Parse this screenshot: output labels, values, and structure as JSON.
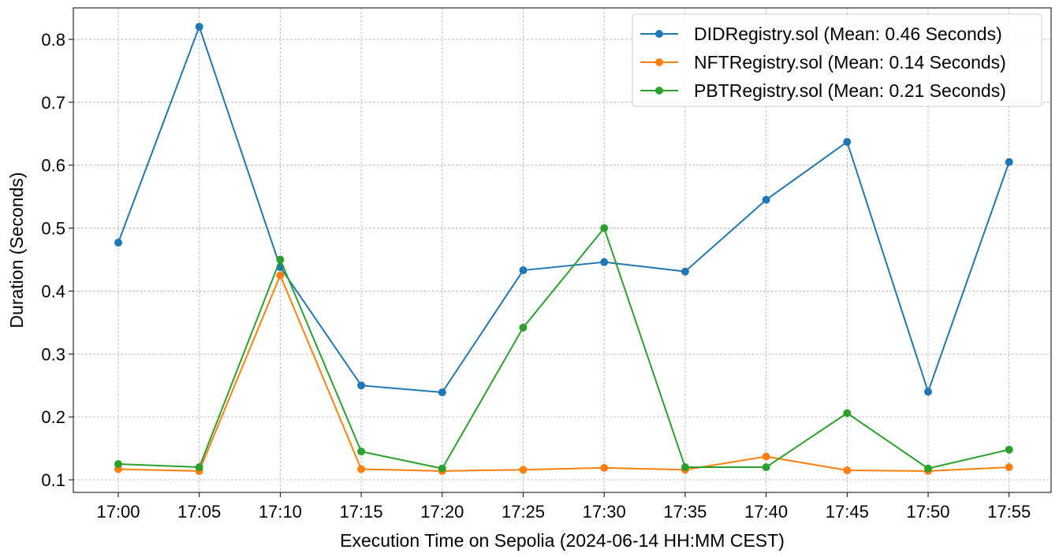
{
  "chart_data": {
    "type": "line",
    "xlabel": "Execution Time on Sepolia (2024-06-14 HH:MM CEST)",
    "ylabel": "Duration (Seconds)",
    "categories": [
      "17:00",
      "17:05",
      "17:10",
      "17:15",
      "17:20",
      "17:25",
      "17:30",
      "17:35",
      "17:40",
      "17:45",
      "17:50",
      "17:55"
    ],
    "ylim": [
      0.08,
      0.85
    ],
    "yticks": [
      0.1,
      0.2,
      0.3,
      0.4,
      0.5,
      0.6,
      0.7,
      0.8
    ],
    "ytick_labels": [
      "0.1",
      "0.2",
      "0.3",
      "0.4",
      "0.5",
      "0.6",
      "0.7",
      "0.8"
    ],
    "grid": true,
    "legend_position": "top-right",
    "series": [
      {
        "name": "DIDRegistry.sol (Mean: 0.46 Seconds)",
        "color": "#1f77b4",
        "values": [
          0.477,
          0.82,
          0.438,
          0.25,
          0.239,
          0.433,
          0.446,
          0.431,
          0.545,
          0.637,
          0.24,
          0.605
        ]
      },
      {
        "name": "NFTRegistry.sol (Mean: 0.14 Seconds)",
        "color": "#ff7f0e",
        "values": [
          0.117,
          0.114,
          0.425,
          0.117,
          0.114,
          0.116,
          0.119,
          0.116,
          0.137,
          0.115,
          0.114,
          0.12
        ]
      },
      {
        "name": "PBTRegistry.sol (Mean: 0.21 Seconds)",
        "color": "#2ca02c",
        "values": [
          0.125,
          0.12,
          0.45,
          0.145,
          0.118,
          0.342,
          0.5,
          0.12,
          0.12,
          0.206,
          0.118,
          0.148
        ]
      }
    ]
  }
}
